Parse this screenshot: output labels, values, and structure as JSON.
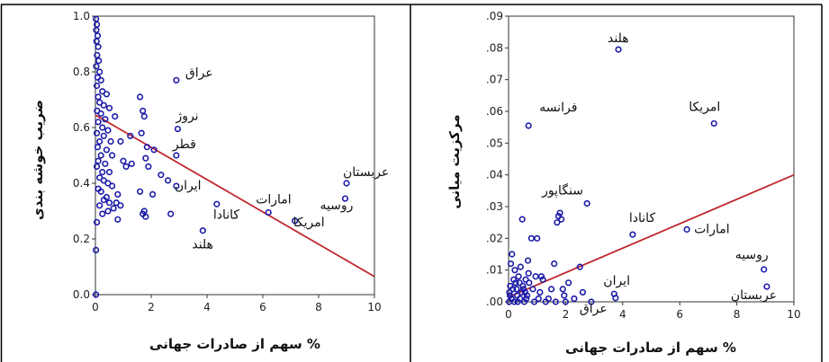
{
  "chart_data": [
    {
      "type": "scatter",
      "xlabel": "سهم از صادرات جهانی %",
      "ylabel": "ضریب خوشه بندی",
      "xlim": [
        0,
        10
      ],
      "ylim": [
        0,
        1
      ],
      "xticks": [
        "0",
        "2",
        "4",
        "6",
        "8",
        "10"
      ],
      "yticks": [
        "0.0",
        "0.2",
        "0.4",
        "0.6",
        "0.8",
        "1.0"
      ],
      "grid": false,
      "colors": {
        "points": "#1a1aa8",
        "line": "#c0282d"
      },
      "fit_line": {
        "x": [
          0,
          10
        ],
        "y": [
          0.645,
          0.065
        ]
      },
      "labeled_points": [
        {
          "label": "عراق",
          "x": 2.9,
          "y": 0.77
        },
        {
          "label": "نروژ",
          "x": 2.95,
          "y": 0.595
        },
        {
          "label": "قطر",
          "x": 2.9,
          "y": 0.5
        },
        {
          "label": "ایران",
          "x": 2.9,
          "y": 0.39
        },
        {
          "label": "کانادا",
          "x": 4.35,
          "y": 0.325
        },
        {
          "label": "هلند",
          "x": 3.85,
          "y": 0.23
        },
        {
          "label": "امارات",
          "x": 6.2,
          "y": 0.295
        },
        {
          "label": "امریکا",
          "x": 7.15,
          "y": 0.265
        },
        {
          "label": "عربستان",
          "x": 9.0,
          "y": 0.4
        },
        {
          "label": "روسیه",
          "x": 8.95,
          "y": 0.345
        }
      ],
      "points": [
        {
          "x": 0.02,
          "y": 0.99
        },
        {
          "x": 0.05,
          "y": 0.97
        },
        {
          "x": 0.03,
          "y": 0.95
        },
        {
          "x": 0.08,
          "y": 0.93
        },
        {
          "x": 0.04,
          "y": 0.91
        },
        {
          "x": 0.1,
          "y": 0.89
        },
        {
          "x": 0.06,
          "y": 0.86
        },
        {
          "x": 0.12,
          "y": 0.84
        },
        {
          "x": 0.03,
          "y": 0.82
        },
        {
          "x": 0.15,
          "y": 0.8
        },
        {
          "x": 0.08,
          "y": 0.78
        },
        {
          "x": 0.2,
          "y": 0.77
        },
        {
          "x": 0.05,
          "y": 0.75
        },
        {
          "x": 0.25,
          "y": 0.73
        },
        {
          "x": 0.1,
          "y": 0.71
        },
        {
          "x": 0.4,
          "y": 0.72
        },
        {
          "x": 0.15,
          "y": 0.69
        },
        {
          "x": 0.3,
          "y": 0.68
        },
        {
          "x": 0.06,
          "y": 0.66
        },
        {
          "x": 0.5,
          "y": 0.67
        },
        {
          "x": 0.2,
          "y": 0.65
        },
        {
          "x": 0.35,
          "y": 0.63
        },
        {
          "x": 0.1,
          "y": 0.62
        },
        {
          "x": 0.7,
          "y": 0.64
        },
        {
          "x": 0.25,
          "y": 0.6
        },
        {
          "x": 0.45,
          "y": 0.59
        },
        {
          "x": 0.05,
          "y": 0.58
        },
        {
          "x": 0.3,
          "y": 0.57
        },
        {
          "x": 0.15,
          "y": 0.55
        },
        {
          "x": 0.55,
          "y": 0.55
        },
        {
          "x": 0.08,
          "y": 0.53
        },
        {
          "x": 0.4,
          "y": 0.52
        },
        {
          "x": 0.2,
          "y": 0.5
        },
        {
          "x": 0.6,
          "y": 0.5
        },
        {
          "x": 0.1,
          "y": 0.48
        },
        {
          "x": 0.35,
          "y": 0.47
        },
        {
          "x": 0.05,
          "y": 0.46
        },
        {
          "x": 0.25,
          "y": 0.44
        },
        {
          "x": 0.5,
          "y": 0.44
        },
        {
          "x": 0.15,
          "y": 0.42
        },
        {
          "x": 0.3,
          "y": 0.41
        },
        {
          "x": 0.45,
          "y": 0.4
        },
        {
          "x": 0.6,
          "y": 0.39
        },
        {
          "x": 0.1,
          "y": 0.38
        },
        {
          "x": 0.2,
          "y": 0.37
        },
        {
          "x": 0.4,
          "y": 0.35
        },
        {
          "x": 0.3,
          "y": 0.34
        },
        {
          "x": 0.5,
          "y": 0.33
        },
        {
          "x": 0.15,
          "y": 0.32
        },
        {
          "x": 0.65,
          "y": 0.31
        },
        {
          "x": 0.45,
          "y": 0.3
        },
        {
          "x": 0.25,
          "y": 0.29
        },
        {
          "x": 0.8,
          "y": 0.27
        },
        {
          "x": 0.05,
          "y": 0.26
        },
        {
          "x": 0.02,
          "y": 0.16
        },
        {
          "x": 0.02,
          "y": 0.0
        },
        {
          "x": 0.75,
          "y": 0.33
        },
        {
          "x": 0.9,
          "y": 0.32
        },
        {
          "x": 0.8,
          "y": 0.36
        },
        {
          "x": 1.0,
          "y": 0.48
        },
        {
          "x": 1.1,
          "y": 0.46
        },
        {
          "x": 1.25,
          "y": 0.57
        },
        {
          "x": 1.6,
          "y": 0.71
        },
        {
          "x": 1.7,
          "y": 0.66
        },
        {
          "x": 1.75,
          "y": 0.64
        },
        {
          "x": 1.65,
          "y": 0.58
        },
        {
          "x": 1.85,
          "y": 0.53
        },
        {
          "x": 2.1,
          "y": 0.52
        },
        {
          "x": 1.8,
          "y": 0.49
        },
        {
          "x": 1.9,
          "y": 0.46
        },
        {
          "x": 2.35,
          "y": 0.43
        },
        {
          "x": 1.6,
          "y": 0.37
        },
        {
          "x": 1.75,
          "y": 0.3
        },
        {
          "x": 1.8,
          "y": 0.28
        },
        {
          "x": 1.7,
          "y": 0.29
        },
        {
          "x": 2.05,
          "y": 0.36
        },
        {
          "x": 2.6,
          "y": 0.41
        },
        {
          "x": 2.7,
          "y": 0.29
        },
        {
          "x": 1.3,
          "y": 0.47
        },
        {
          "x": 0.9,
          "y": 0.55
        }
      ]
    },
    {
      "type": "scatter",
      "xlabel": "سهم از صادرات جهانی %",
      "ylabel": "مرکزیت میانی",
      "xlim": [
        0,
        10
      ],
      "ylim": [
        0,
        0.09
      ],
      "xticks": [
        "0",
        "2",
        "4",
        "6",
        "8",
        "10"
      ],
      "yticks": [
        ".00",
        ".01",
        ".02",
        ".03",
        ".04",
        ".05",
        ".06",
        ".07",
        ".08",
        ".09"
      ],
      "grid": false,
      "colors": {
        "points": "#1a1aa8",
        "line": "#c0282d"
      },
      "fit_line": {
        "x": [
          0,
          10
        ],
        "y": [
          0.0015,
          0.04
        ]
      },
      "labeled_points": [
        {
          "label": "هلند",
          "x": 3.85,
          "y": 0.0795
        },
        {
          "label": "فرانسه",
          "x": 0.7,
          "y": 0.0555
        },
        {
          "label": "امریکا",
          "x": 7.2,
          "y": 0.0562
        },
        {
          "label": "سنگاپور",
          "x": 2.75,
          "y": 0.031
        },
        {
          "label": "کانادا",
          "x": 4.35,
          "y": 0.0212
        },
        {
          "label": "امارات",
          "x": 6.25,
          "y": 0.0228
        },
        {
          "label": "روسیه",
          "x": 8.95,
          "y": 0.0102
        },
        {
          "label": "عربستان",
          "x": 9.05,
          "y": 0.0048
        },
        {
          "label": "ایران",
          "x": 3.7,
          "y": 0.0025
        },
        {
          "label": "عراق",
          "x": 3.75,
          "y": 0.0012
        }
      ],
      "points": [
        {
          "x": 0.02,
          "y": 0.0
        },
        {
          "x": 0.05,
          "y": 0.002
        },
        {
          "x": 0.1,
          "y": 0.001
        },
        {
          "x": 0.15,
          "y": 0.004
        },
        {
          "x": 0.2,
          "y": 0.0
        },
        {
          "x": 0.25,
          "y": 0.006
        },
        {
          "x": 0.3,
          "y": 0.002
        },
        {
          "x": 0.35,
          "y": 0.008
        },
        {
          "x": 0.4,
          "y": 0.001
        },
        {
          "x": 0.45,
          "y": 0.003
        },
        {
          "x": 0.5,
          "y": 0.005
        },
        {
          "x": 0.55,
          "y": 0.0
        },
        {
          "x": 0.6,
          "y": 0.007
        },
        {
          "x": 0.65,
          "y": 0.002
        },
        {
          "x": 0.7,
          "y": 0.009
        },
        {
          "x": 0.08,
          "y": 0.012
        },
        {
          "x": 0.12,
          "y": 0.015
        },
        {
          "x": 0.18,
          "y": 0.007
        },
        {
          "x": 0.22,
          "y": 0.01
        },
        {
          "x": 0.28,
          "y": 0.004
        },
        {
          "x": 0.32,
          "y": 0.0
        },
        {
          "x": 0.38,
          "y": 0.006
        },
        {
          "x": 0.42,
          "y": 0.011
        },
        {
          "x": 0.48,
          "y": 0.026
        },
        {
          "x": 0.52,
          "y": 0.004
        },
        {
          "x": 0.58,
          "y": 0.003
        },
        {
          "x": 0.62,
          "y": 0.001
        },
        {
          "x": 0.68,
          "y": 0.013
        },
        {
          "x": 0.72,
          "y": 0.006
        },
        {
          "x": 0.8,
          "y": 0.02
        },
        {
          "x": 0.85,
          "y": 0.004
        },
        {
          "x": 0.9,
          "y": 0.0
        },
        {
          "x": 0.95,
          "y": 0.008
        },
        {
          "x": 1.0,
          "y": 0.02
        },
        {
          "x": 1.05,
          "y": 0.001
        },
        {
          "x": 1.1,
          "y": 0.003
        },
        {
          "x": 1.2,
          "y": 0.007
        },
        {
          "x": 1.3,
          "y": 0.0
        },
        {
          "x": 1.4,
          "y": 0.001
        },
        {
          "x": 1.5,
          "y": 0.004
        },
        {
          "x": 1.6,
          "y": 0.012
        },
        {
          "x": 1.7,
          "y": 0.025
        },
        {
          "x": 1.75,
          "y": 0.027
        },
        {
          "x": 1.8,
          "y": 0.028
        },
        {
          "x": 1.85,
          "y": 0.026
        },
        {
          "x": 1.9,
          "y": 0.004
        },
        {
          "x": 2.0,
          "y": 0.0
        },
        {
          "x": 2.1,
          "y": 0.006
        },
        {
          "x": 2.3,
          "y": 0.001
        },
        {
          "x": 2.5,
          "y": 0.011
        },
        {
          "x": 2.6,
          "y": 0.003
        },
        {
          "x": 2.9,
          "y": 0.0
        },
        {
          "x": 1.15,
          "y": 0.008
        },
        {
          "x": 0.03,
          "y": 0.003
        },
        {
          "x": 0.06,
          "y": 0.005
        },
        {
          "x": 1.65,
          "y": 0.0
        },
        {
          "x": 1.95,
          "y": 0.002
        }
      ]
    }
  ]
}
